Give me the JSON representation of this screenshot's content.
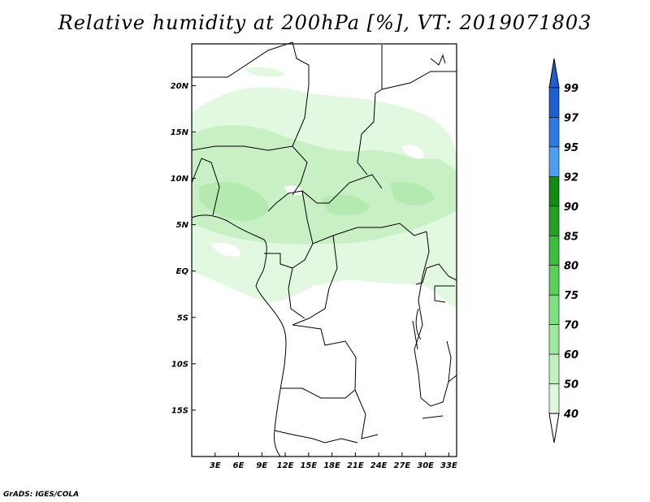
{
  "title": "Relative humidity at 200hPa [%], VT: 2019071803",
  "credit": "GrADS: IGES/COLA",
  "map": {
    "lat_ticks": [
      "20N",
      "15N",
      "10N",
      "5N",
      "EQ",
      "5S",
      "10S",
      "15S"
    ],
    "lon_ticks": [
      "3E",
      "6E",
      "9E",
      "12E",
      "15E",
      "18E",
      "21E",
      "24E",
      "27E",
      "30E",
      "33E"
    ],
    "lat_values": [
      20,
      15,
      10,
      5,
      0,
      -5,
      -10,
      -15
    ],
    "lon_values": [
      3,
      6,
      9,
      12,
      15,
      18,
      21,
      24,
      27,
      30,
      33
    ],
    "extent": {
      "lon_min": 0,
      "lon_max": 34,
      "lat_min": -20,
      "lat_max": 24.5
    }
  },
  "colorbar": {
    "levels": [
      "99",
      "97",
      "95",
      "92",
      "90",
      "85",
      "80",
      "75",
      "70",
      "60",
      "50",
      "40"
    ],
    "colors": [
      "#1e5fd2",
      "#2d7ae0",
      "#4ea0ee",
      "#108a10",
      "#24a024",
      "#3cbe3c",
      "#5ad05a",
      "#80e080",
      "#a0eaa0",
      "#c0f2c0",
      "#ddf8dd",
      "#f0fcf0"
    ],
    "top_arrow_color": "#1e5fd2",
    "bottom_arrow_color": "#ffffff"
  }
}
